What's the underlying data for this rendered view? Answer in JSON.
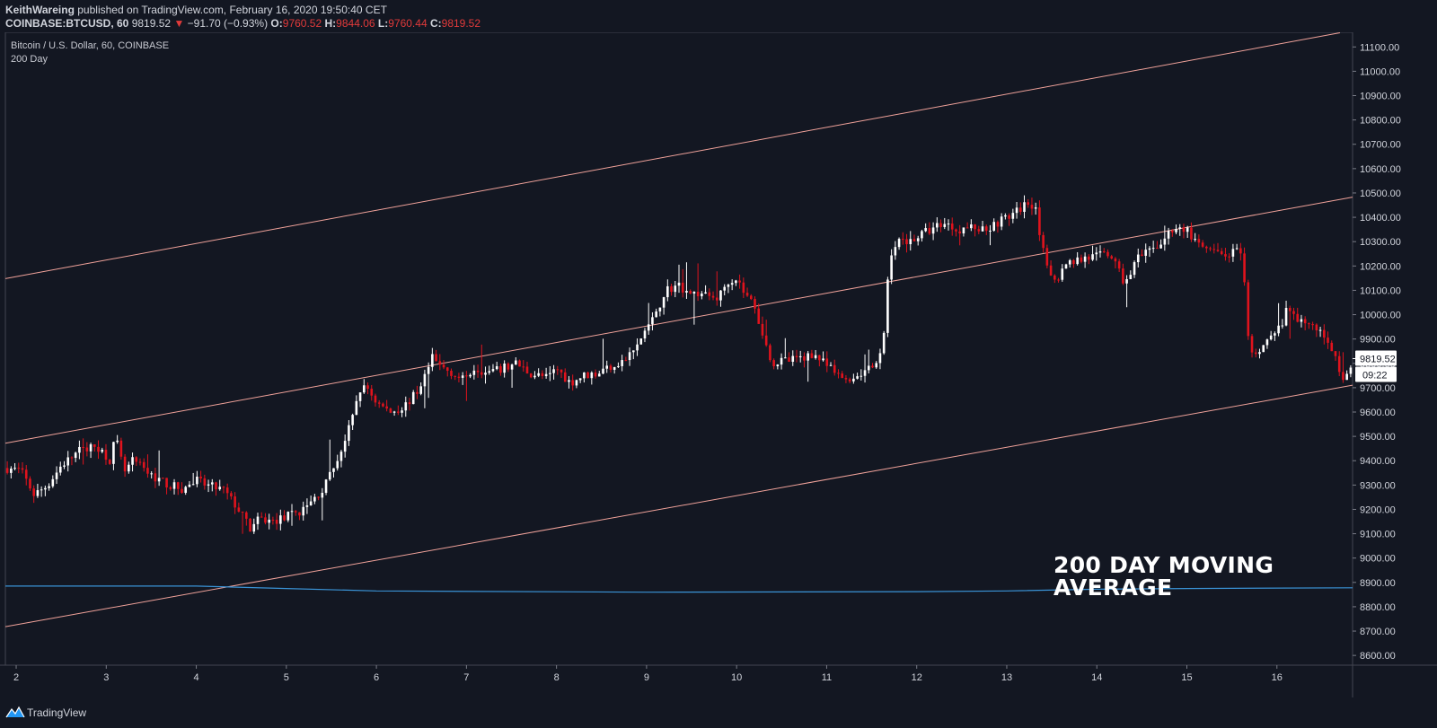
{
  "header": {
    "publisher": "KeithWareing",
    "published_text": "published on TradingView.com, February 16, 2020 19:50:40 CET",
    "symbol_line": "COINBASE:BTCUSD, 60",
    "last_price": "9819.52",
    "change_arrow": "▼",
    "change": "−91.70 (−0.93%)",
    "o_label": "O:",
    "o_value": "9760.52",
    "h_label": "H:",
    "h_value": "9844.06",
    "l_label": "L:",
    "l_value": "9760.44",
    "c_label": "C:",
    "c_value": "9819.52"
  },
  "legend": {
    "title": "Bitcoin / U.S. Dollar, 60, COINBASE",
    "indicator": "200 Day"
  },
  "annotation": {
    "line1": "200 DAY MOVING",
    "line2": "AVERAGE"
  },
  "footer": {
    "brand": "TradingView"
  },
  "colors": {
    "background": "#131722",
    "candle_up": "#ffffff",
    "candle_down": "#e0131d",
    "channel": "#f0a29a",
    "moving_average": "#3a93d6",
    "axis_text": "#d1d4dc"
  },
  "chart_data": {
    "type": "candlestick",
    "symbol": "BTCUSD",
    "interval": "60",
    "x_tick_labels": [
      "2",
      "3",
      "4",
      "5",
      "6",
      "7",
      "8",
      "9",
      "10",
      "11",
      "12",
      "13",
      "14",
      "15",
      "16"
    ],
    "y_tick_labels": [
      "8600.00",
      "8700.00",
      "8800.00",
      "8900.00",
      "9000.00",
      "9100.00",
      "9200.00",
      "9300.00",
      "9400.00",
      "9500.00",
      "9600.00",
      "9700.00",
      "9800.00",
      "9900.00",
      "10000.00",
      "10100.00",
      "10200.00",
      "10300.00",
      "10400.00",
      "10500.00",
      "10600.00",
      "10700.00",
      "10800.00",
      "10900.00",
      "11000.00",
      "11100.00"
    ],
    "ylim": [
      8560,
      11160
    ],
    "xlim": [
      1.88,
      16.84
    ],
    "price_label": "9819.52",
    "countdown_label": "09:22",
    "close_path": [
      [
        1.88,
        9370
      ],
      [
        2.05,
        9360
      ],
      [
        2.2,
        9260
      ],
      [
        2.35,
        9300
      ],
      [
        2.5,
        9380
      ],
      [
        2.7,
        9440
      ],
      [
        2.9,
        9460
      ],
      [
        3.05,
        9400
      ],
      [
        3.1,
        9500
      ],
      [
        3.2,
        9350
      ],
      [
        3.3,
        9400
      ],
      [
        3.5,
        9340
      ],
      [
        3.7,
        9300
      ],
      [
        3.85,
        9280
      ],
      [
        4.0,
        9320
      ],
      [
        4.1,
        9300
      ],
      [
        4.3,
        9280
      ],
      [
        4.45,
        9210
      ],
      [
        4.6,
        9120
      ],
      [
        4.7,
        9160
      ],
      [
        4.85,
        9150
      ],
      [
        5.0,
        9170
      ],
      [
        5.2,
        9200
      ],
      [
        5.4,
        9280
      ],
      [
        5.5,
        9350
      ],
      [
        5.65,
        9480
      ],
      [
        5.75,
        9590
      ],
      [
        5.8,
        9690
      ],
      [
        5.9,
        9700
      ],
      [
        6.0,
        9640
      ],
      [
        6.15,
        9600
      ],
      [
        6.3,
        9620
      ],
      [
        6.45,
        9680
      ],
      [
        6.55,
        9760
      ],
      [
        6.62,
        9820
      ],
      [
        6.7,
        9790
      ],
      [
        6.85,
        9760
      ],
      [
        6.95,
        9730
      ],
      [
        7.1,
        9790
      ],
      [
        7.2,
        9760
      ],
      [
        7.35,
        9770
      ],
      [
        7.55,
        9800
      ],
      [
        7.7,
        9760
      ],
      [
        7.9,
        9740
      ],
      [
        8.0,
        9780
      ],
      [
        8.15,
        9720
      ],
      [
        8.3,
        9750
      ],
      [
        8.45,
        9760
      ],
      [
        8.6,
        9790
      ],
      [
        8.75,
        9810
      ],
      [
        8.9,
        9870
      ],
      [
        9.0,
        9950
      ],
      [
        9.1,
        9990
      ],
      [
        9.2,
        10100
      ],
      [
        9.35,
        10120
      ],
      [
        9.5,
        10090
      ],
      [
        9.65,
        10080
      ],
      [
        9.8,
        10070
      ],
      [
        9.9,
        10140
      ],
      [
        10.0,
        10150
      ],
      [
        10.1,
        10080
      ],
      [
        10.2,
        10040
      ],
      [
        10.3,
        9900
      ],
      [
        10.4,
        9800
      ],
      [
        10.55,
        9810
      ],
      [
        10.7,
        9820
      ],
      [
        10.85,
        9840
      ],
      [
        11.0,
        9790
      ],
      [
        11.15,
        9740
      ],
      [
        11.3,
        9740
      ],
      [
        11.45,
        9780
      ],
      [
        11.55,
        9790
      ],
      [
        11.62,
        9850
      ],
      [
        11.7,
        10250
      ],
      [
        11.8,
        10300
      ],
      [
        11.95,
        10310
      ],
      [
        12.1,
        10340
      ],
      [
        12.3,
        10380
      ],
      [
        12.45,
        10350
      ],
      [
        12.6,
        10360
      ],
      [
        12.75,
        10350
      ],
      [
        12.95,
        10390
      ],
      [
        13.1,
        10420
      ],
      [
        13.22,
        10460
      ],
      [
        13.32,
        10450
      ],
      [
        13.38,
        10300
      ],
      [
        13.45,
        10180
      ],
      [
        13.55,
        10150
      ],
      [
        13.7,
        10220
      ],
      [
        13.85,
        10230
      ],
      [
        14.0,
        10240
      ],
      [
        14.15,
        10250
      ],
      [
        14.3,
        10130
      ],
      [
        14.45,
        10230
      ],
      [
        14.6,
        10260
      ],
      [
        14.75,
        10310
      ],
      [
        14.85,
        10360
      ],
      [
        15.0,
        10350
      ],
      [
        15.1,
        10290
      ],
      [
        15.25,
        10260
      ],
      [
        15.4,
        10240
      ],
      [
        15.55,
        10260
      ],
      [
        15.62,
        10220
      ],
      [
        15.68,
        9900
      ],
      [
        15.75,
        9810
      ],
      [
        15.85,
        9890
      ],
      [
        16.0,
        9920
      ],
      [
        16.1,
        10010
      ],
      [
        16.2,
        9990
      ],
      [
        16.35,
        9960
      ],
      [
        16.45,
        9940
      ],
      [
        16.55,
        9900
      ],
      [
        16.65,
        9840
      ],
      [
        16.72,
        9700
      ],
      [
        16.78,
        9760
      ],
      [
        16.84,
        9820
      ]
    ],
    "series": [
      {
        "name": "200 Day",
        "type": "line",
        "points": [
          [
            1.88,
            8885
          ],
          [
            4.0,
            8885
          ],
          [
            5.0,
            8875
          ],
          [
            6.0,
            8865
          ],
          [
            9.0,
            8860
          ],
          [
            12.0,
            8862
          ],
          [
            13.0,
            8865
          ],
          [
            14.0,
            8872
          ],
          [
            15.0,
            8875
          ],
          [
            16.84,
            8878
          ]
        ]
      }
    ],
    "channel_lines": [
      {
        "role": "upper",
        "points": [
          [
            1.88,
            10148
          ],
          [
            16.7,
            11158
          ]
        ]
      },
      {
        "role": "middle",
        "points": [
          [
            1.88,
            9472
          ],
          [
            16.84,
            10483
          ]
        ]
      },
      {
        "role": "lower",
        "points": [
          [
            1.88,
            8718
          ],
          [
            16.84,
            9710
          ]
        ]
      }
    ]
  }
}
